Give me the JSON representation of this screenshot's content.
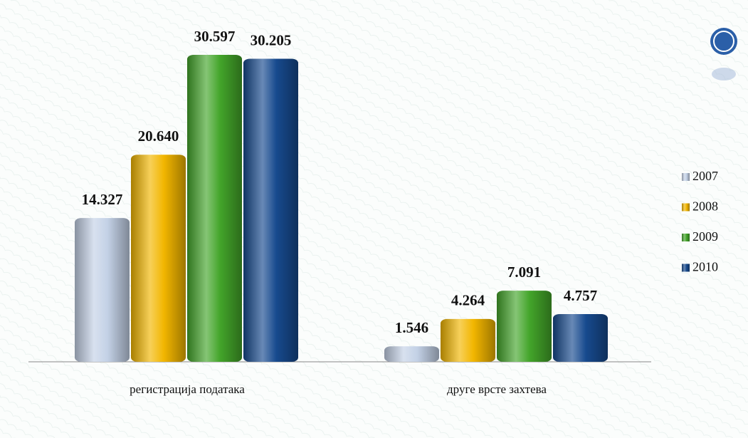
{
  "chart_data": {
    "type": "bar",
    "categories": [
      "регистрација података",
      "друге врсте захтева"
    ],
    "series": [
      {
        "name": "2007",
        "color": "#c3d1e6",
        "values": [
          14327,
          1546
        ],
        "value_labels": [
          "14.327",
          "1.546"
        ]
      },
      {
        "name": "2008",
        "color": "#f2b600",
        "values": [
          20640,
          4264
        ],
        "value_labels": [
          "20.640",
          "4.264"
        ]
      },
      {
        "name": "2009",
        "color": "#43a52a",
        "values": [
          30597,
          7091
        ],
        "value_labels": [
          "30.597",
          "7.091"
        ]
      },
      {
        "name": "2010",
        "color": "#174a8e",
        "values": [
          30205,
          4757
        ],
        "value_labels": [
          "30.205",
          "4.757"
        ]
      }
    ],
    "legend": "right"
  }
}
